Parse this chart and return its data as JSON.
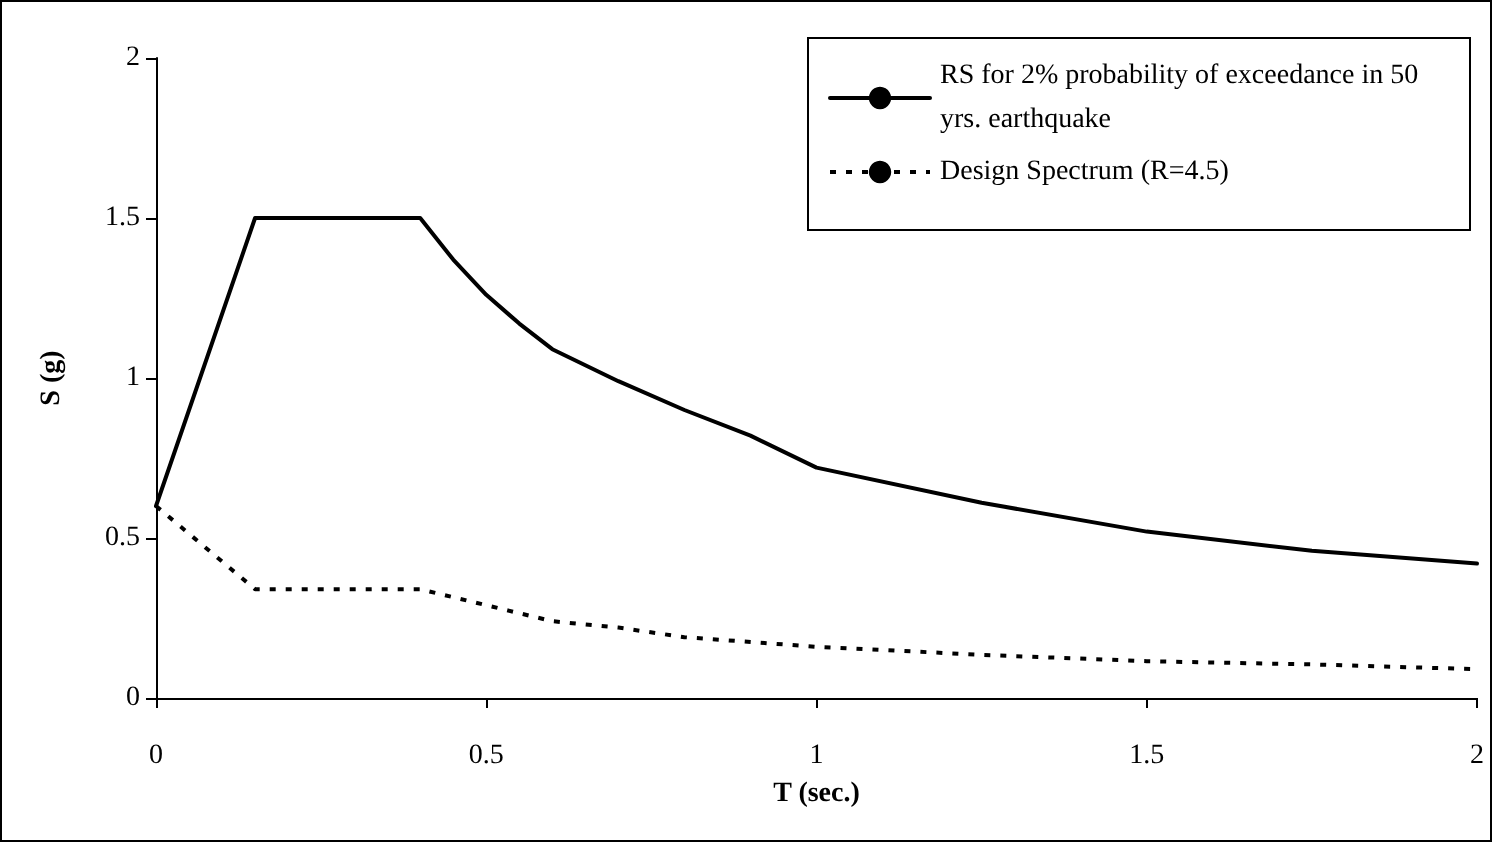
{
  "chart_data": {
    "type": "line",
    "xlabel": "T (sec.)",
    "ylabel": "S (g)",
    "xlim": [
      0,
      2
    ],
    "xticks": [
      0,
      0.5,
      1,
      1.5,
      2
    ],
    "ylim": [
      0,
      2
    ],
    "yticks": [
      0,
      0.5,
      1,
      1.5,
      2
    ],
    "grid": false,
    "legend": "top right",
    "marker": "none",
    "series": [
      {
        "name": "RS for 2% probability of exceedance in 50 yrs. earthquake",
        "color": "#000000",
        "line_style": "solid",
        "x": [
          0,
          0.15,
          0.4,
          0.45,
          0.5,
          0.55,
          0.6,
          0.7,
          0.8,
          0.9,
          1.0,
          1.25,
          1.5,
          1.75,
          2.0
        ],
        "values": [
          0.6,
          1.5,
          1.5,
          1.37,
          1.26,
          1.17,
          1.09,
          0.99,
          0.9,
          0.82,
          0.72,
          0.61,
          0.52,
          0.46,
          0.42
        ]
      },
      {
        "name": "Design Spectrum (R=4.5)",
        "color": "#000000",
        "line_style": "dotted",
        "x": [
          0,
          0.15,
          0.4,
          0.5,
          0.6,
          0.7,
          0.8,
          1.0,
          1.25,
          1.5,
          1.75,
          2.0
        ],
        "values": [
          0.6,
          0.34,
          0.34,
          0.29,
          0.24,
          0.22,
          0.19,
          0.16,
          0.135,
          0.115,
          0.105,
          0.09
        ]
      }
    ]
  }
}
